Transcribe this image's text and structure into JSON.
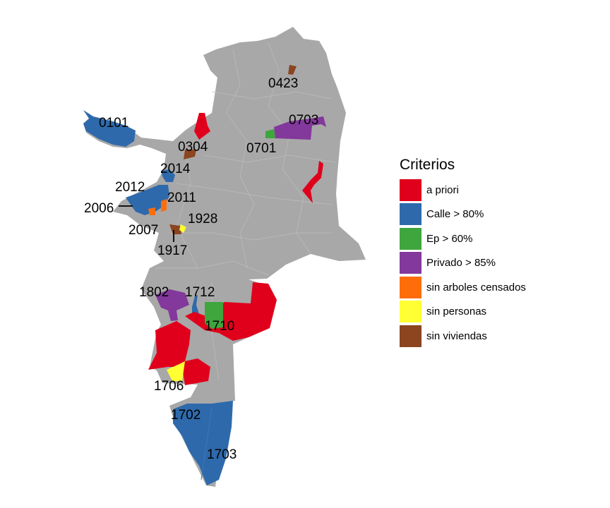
{
  "legend": {
    "title": "Criterios",
    "items": [
      {
        "key": "a_priori",
        "label": "a priori",
        "color": "#e0001b"
      },
      {
        "key": "calle",
        "label": "Calle > 80%",
        "color": "#2e6aab"
      },
      {
        "key": "ep",
        "label": "Ep > 60%",
        "color": "#3fa63d"
      },
      {
        "key": "privado",
        "label": "Privado > 85%",
        "color": "#83389b"
      },
      {
        "key": "sin_arboles",
        "label": "sin arboles censados",
        "color": "#ff6d0a"
      },
      {
        "key": "sin_personas",
        "label": "sin personas",
        "color": "#ffff33"
      },
      {
        "key": "sin_viviendas",
        "label": "sin viviendas",
        "color": "#8b4520"
      }
    ]
  },
  "base_color": "#a8a8a8",
  "zones": [
    {
      "code": "0101",
      "category": "calle"
    },
    {
      "code": "0304",
      "category": "sin_viviendas"
    },
    {
      "code": "0423",
      "category": "sin_viviendas"
    },
    {
      "code": "0701",
      "category": "ep"
    },
    {
      "code": "0703",
      "category": "privado"
    },
    {
      "code": "2014",
      "category": "calle"
    },
    {
      "code": "2012",
      "category": "calle"
    },
    {
      "code": "2011",
      "category": "sin_arboles"
    },
    {
      "code": "2006",
      "category": "calle"
    },
    {
      "code": "2007",
      "category": "sin_arboles"
    },
    {
      "code": "1928",
      "category": "sin_personas"
    },
    {
      "code": "1917",
      "category": "sin_viviendas"
    },
    {
      "code": "1802",
      "category": "privado"
    },
    {
      "code": "1712",
      "category": "calle"
    },
    {
      "code": "1710",
      "category": "ep"
    },
    {
      "code": "1706",
      "category": "sin_personas"
    },
    {
      "code": "1702",
      "category": "calle"
    },
    {
      "code": "1703",
      "category": "calle"
    }
  ]
}
